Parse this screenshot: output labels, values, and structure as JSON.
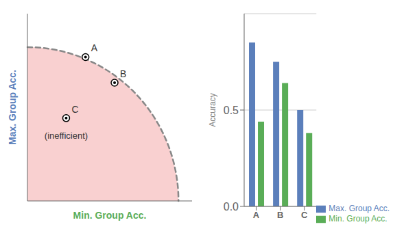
{
  "chart_data": [
    {
      "type": "scatter",
      "x_label": "Min. Group Acc.",
      "y_label": "Max. Group Acc.",
      "x": [
        0.3,
        0.45,
        0.2
      ],
      "values": [
        0.73,
        0.6,
        0.42
      ],
      "labels": [
        "A",
        "B",
        "C"
      ],
      "xlim": [
        0,
        0.85
      ],
      "ylim": [
        0,
        0.95
      ],
      "tick_labels": false,
      "grid": false,
      "pareto_radius": 0.78,
      "pareto_color": "#888888",
      "fill_color": "#f9d0d0",
      "annotations": [
        {
          "text": "(inefficient)",
          "x": 0.2,
          "y": 0.42
        }
      ]
    },
    {
      "type": "bar",
      "y_label": "Accuracy",
      "categories": [
        "A",
        "B",
        "C"
      ],
      "series": [
        {
          "name": "Max. Group Acc.",
          "color": "#5b7fbb",
          "values": [
            0.85,
            0.75,
            0.5
          ]
        },
        {
          "name": "Min. Group Acc.",
          "color": "#5aad57",
          "values": [
            0.44,
            0.64,
            0.38
          ]
        }
      ],
      "ylim": [
        0,
        1.0
      ],
      "yticks": [
        {
          "value": 0,
          "label": "0.0"
        },
        0.5
      ],
      "grid": true,
      "legend": "lower right"
    }
  ]
}
